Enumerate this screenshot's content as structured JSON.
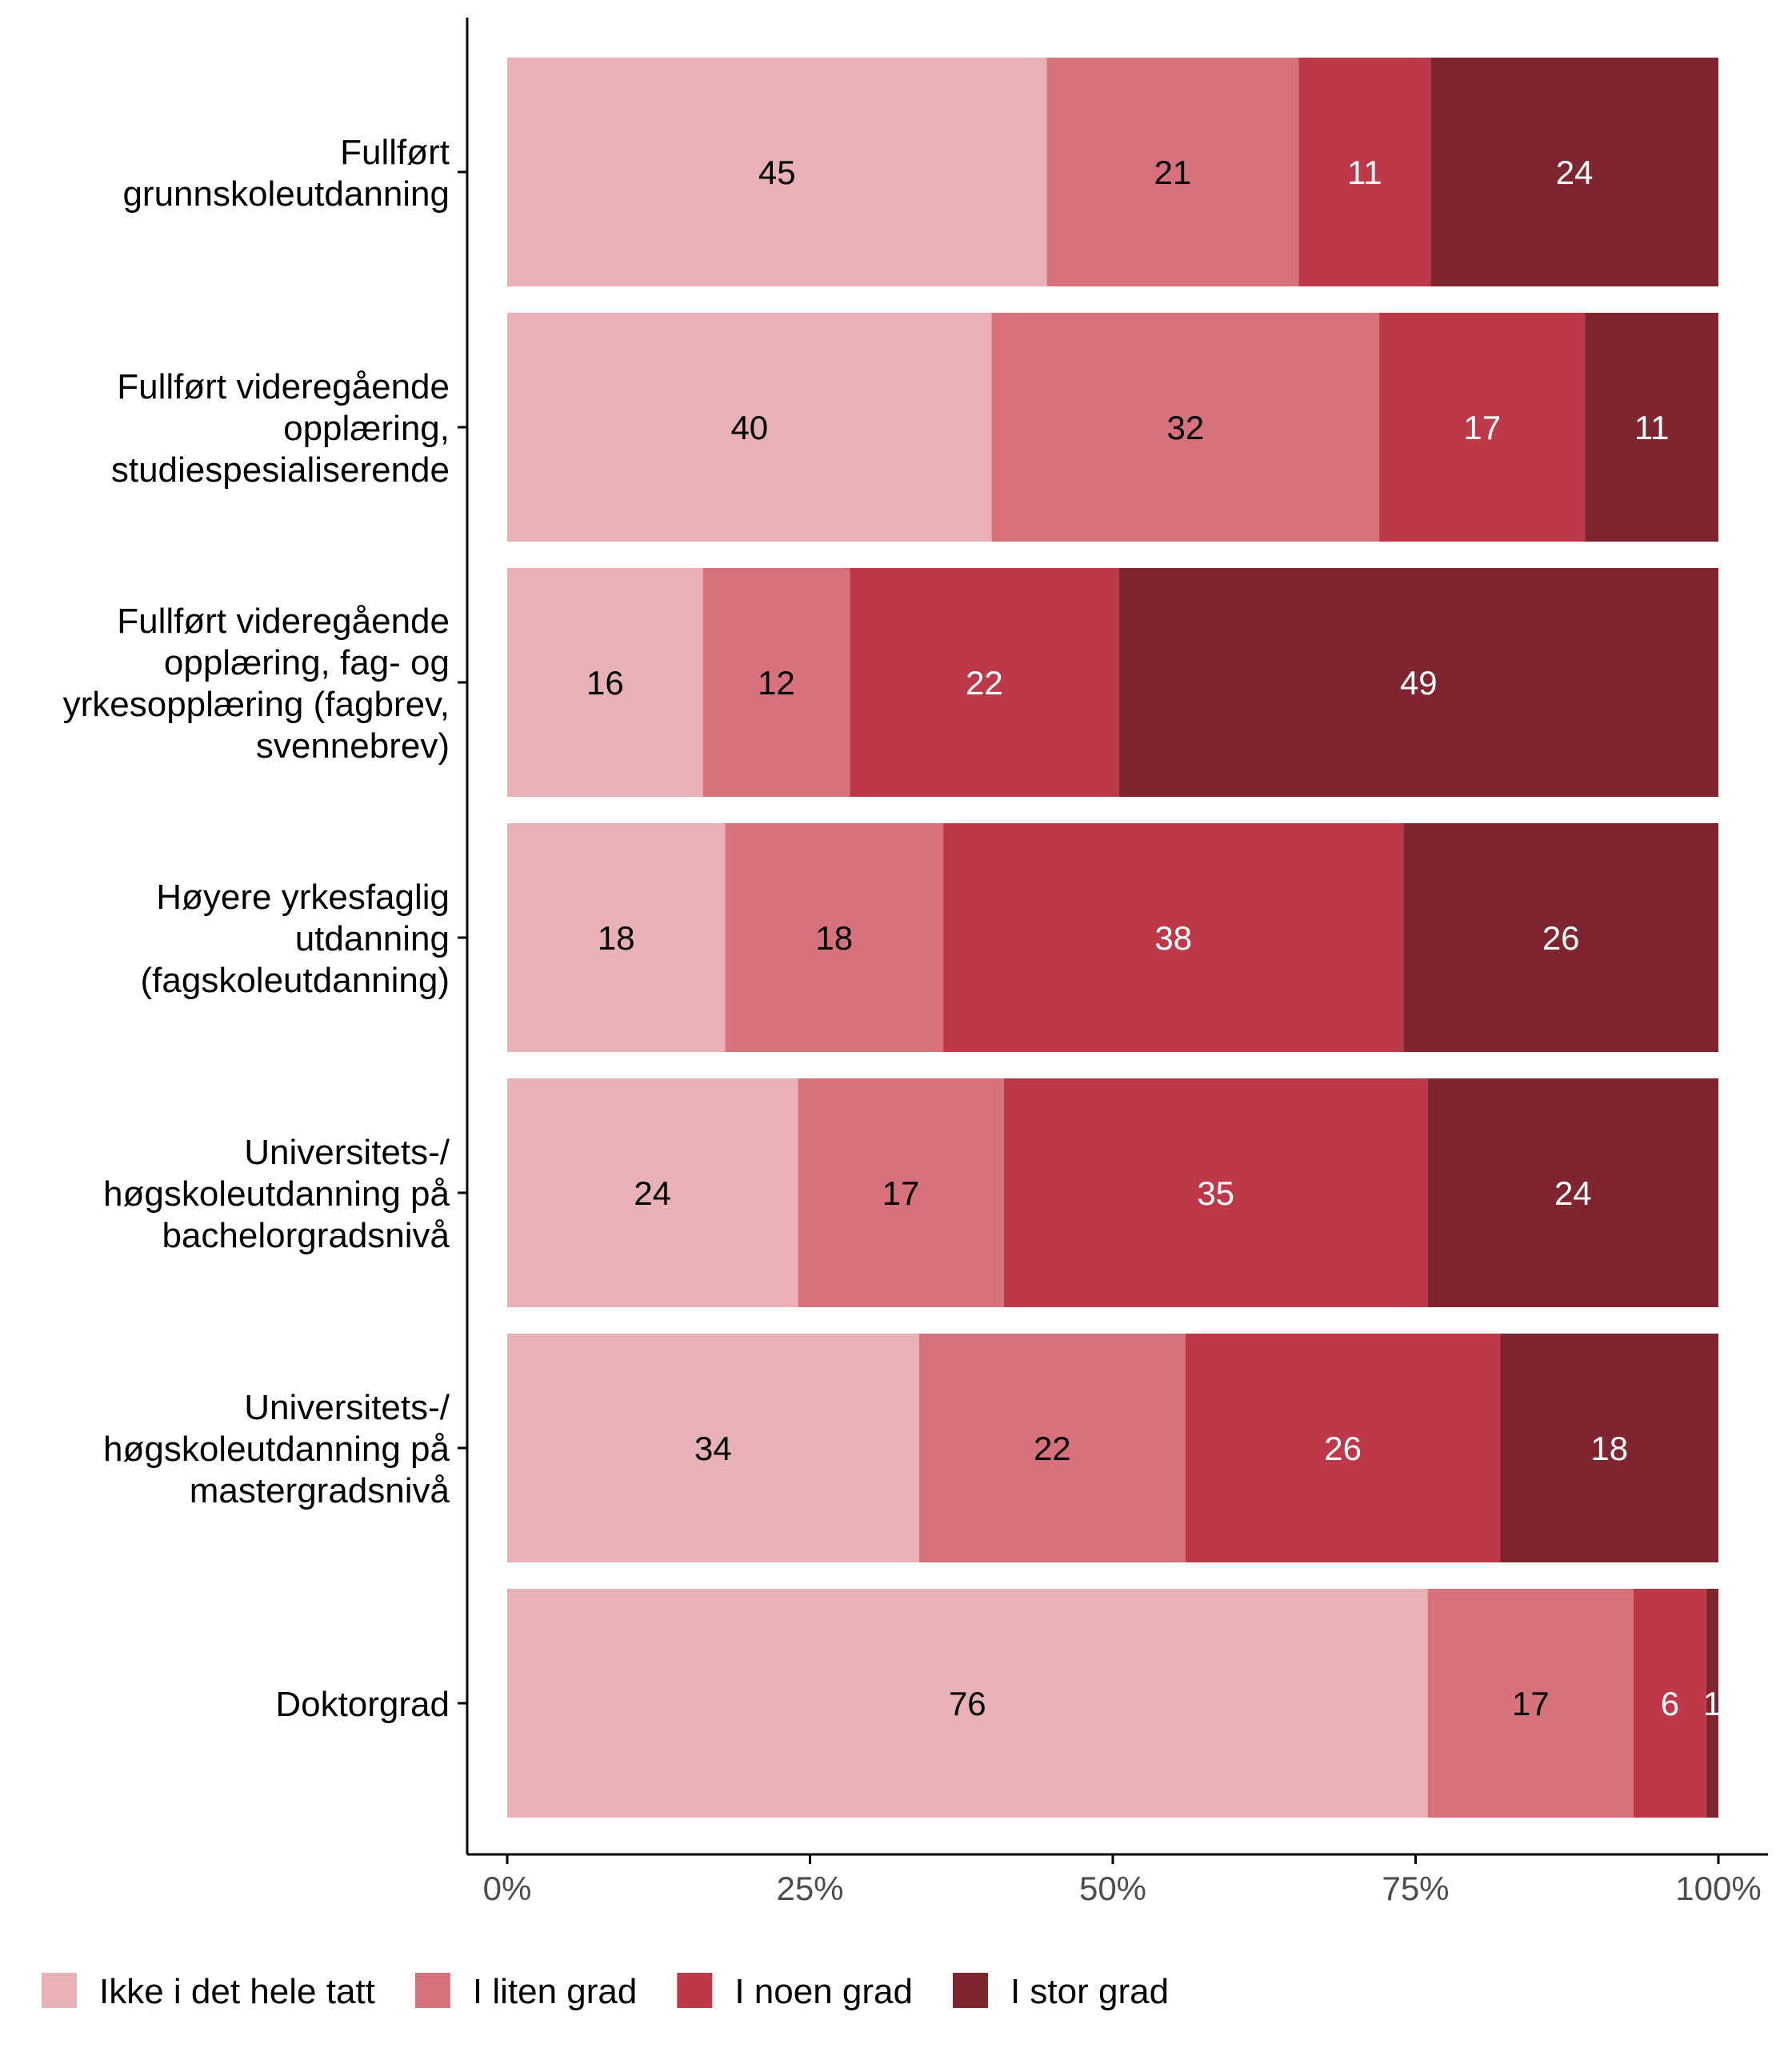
{
  "chart_data": {
    "type": "bar",
    "orientation": "horizontal",
    "stacked": true,
    "categories": [
      [
        "Fullført",
        "grunnskoleutdanning"
      ],
      [
        "Fullført videregående",
        "opplæring,",
        "studiespesialiserende"
      ],
      [
        "Fullført videregående",
        "opplæring, fag- og",
        "yrkesopplæring (fagbrev,",
        "svennebrev)"
      ],
      [
        "Høyere yrkesfaglig",
        "utdanning",
        "(fagskoleutdanning)"
      ],
      [
        "Universitets-/",
        "høgskoleutdanning på",
        "bachelorgradsnivå"
      ],
      [
        "Universitets-/",
        "høgskoleutdanning på",
        "mastergradsnivå"
      ],
      [
        "Doktorgrad"
      ]
    ],
    "series": [
      {
        "name": "Ikke i det hele tatt",
        "color": "#e8b1b6",
        "label_color": "#000000",
        "values": [
          45,
          40,
          16,
          18,
          24,
          34,
          76
        ]
      },
      {
        "name": "I liten grad",
        "color": "#d7717c",
        "label_color": "#000000",
        "values": [
          21,
          32,
          12,
          18,
          17,
          22,
          17
        ]
      },
      {
        "name": "I noen grad",
        "color": "#be3849",
        "label_color": "#ffffff",
        "values": [
          11,
          17,
          22,
          38,
          35,
          26,
          6
        ]
      },
      {
        "name": "I stor grad",
        "color": "#7f2530",
        "label_color": "#ffffff",
        "values": [
          24,
          11,
          49,
          26,
          24,
          18,
          1
        ]
      }
    ],
    "xticks": [
      "0%",
      "25%",
      "50%",
      "75%",
      "100%"
    ],
    "xlim": [
      0,
      100
    ],
    "xlabel": "",
    "ylabel": "",
    "legend_position": "bottom",
    "grid": false
  }
}
